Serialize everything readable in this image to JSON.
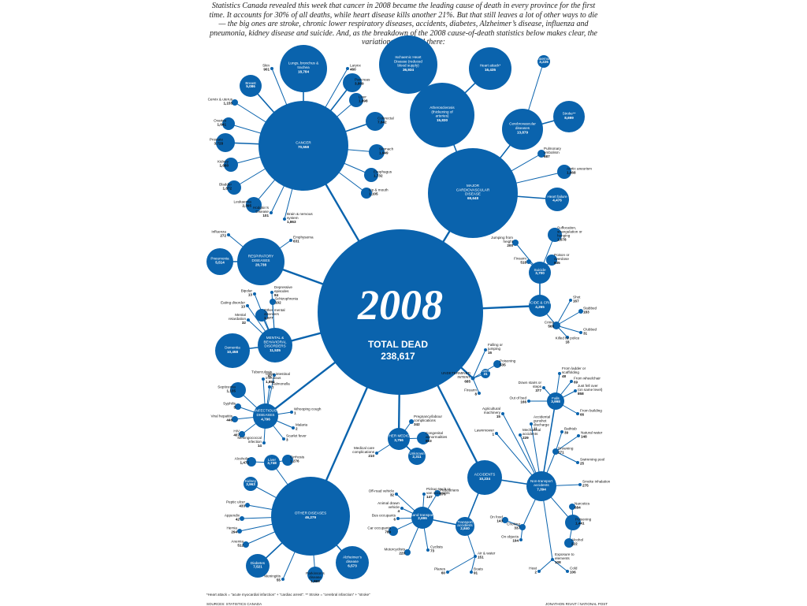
{
  "intro": "Statistics Canada revealed this week that cancer in 2008 became the leading cause of death in every province for the first time. It accounts for 30% of all deaths, while heart disease kills another 21%. But that still leaves a lot of other ways to die — the big ones are stroke, chronic lower respiratory diseases, accidents, diabetes, Alzheimer’s disease, influenza and pneumonia, kidney disease and suicide. And, as the breakdown of the 2008 cause-of-death statistics below makes clear, the variations don’t end there:",
  "center": {
    "year": "2008",
    "label": "TOTAL DEAD",
    "value": "238,617"
  },
  "colors": {
    "node": "#0a63ad",
    "text": "#111111",
    "background": "#ffffff"
  },
  "groups": [
    {
      "id": "cancer",
      "name": "CANCER",
      "value": "70,558",
      "children": [
        {
          "name": "Skin",
          "value": "901"
        },
        {
          "name": "Lungs, bronchus & trachea",
          "value": "18,784"
        },
        {
          "name": "Larynx",
          "value": "460"
        },
        {
          "name": "Pancreas",
          "value": "3,869"
        },
        {
          "name": "Liver",
          "value": "1,898"
        },
        {
          "name": "Colorectal",
          "value": "7,842"
        },
        {
          "name": "Stomach",
          "value": "1,949"
        },
        {
          "name": "Esophagus",
          "value": "1,732"
        },
        {
          "name": "Lip & mouth",
          "value": "1,105"
        },
        {
          "name": "Brain & nervous system",
          "value": "1,863"
        },
        {
          "name": "Hodgkin’s Disease",
          "value": "101"
        },
        {
          "name": "Leukaemia",
          "value": "2,395"
        },
        {
          "name": "Bladder",
          "value": "1,872"
        },
        {
          "name": "Kidney",
          "value": "1,680"
        },
        {
          "name": "Prostate",
          "value": "3,728"
        },
        {
          "name": "Ovaries",
          "value": "1,641"
        },
        {
          "name": "Cervix & uterus",
          "value": "1,155"
        },
        {
          "name": "Breast",
          "value": "5,086"
        }
      ]
    },
    {
      "id": "cardio",
      "name": "MAJOR CARDIOVASCULAR DISEASE",
      "value": "69,648",
      "children": [
        {
          "name": "Ischaemic Heart Disease (reduced blood supply)",
          "value": "36,934"
        },
        {
          "name": "Atherosclerosis (thickening of arteries)",
          "value": "15,830"
        },
        {
          "name": "Heart attack*",
          "value": "16,435"
        },
        {
          "name": "Cerebrovascular diseases",
          "value": "13,879"
        },
        {
          "name": "Brain haemorrhage",
          "value": "3,226"
        },
        {
          "name": "Stroke**",
          "value": "8,699"
        },
        {
          "name": "Pulmonary embolism",
          "value": "687"
        },
        {
          "name": "Aortic aneurism",
          "value": "1,668"
        },
        {
          "name": "Heart failure",
          "value": "4,476"
        }
      ]
    },
    {
      "id": "respiratory",
      "name": "RESPIRATORY DISEASES",
      "value": "20,738",
      "children": [
        {
          "name": "Influenza",
          "value": "272"
        },
        {
          "name": "Emphysema",
          "value": "631"
        },
        {
          "name": "Pneumonia",
          "value": "5,514"
        }
      ]
    },
    {
      "id": "mental",
      "name": "MENTAL & BEHAVIORAL DISORDERS",
      "value": "11,535",
      "children": [
        {
          "name": "Bipolar",
          "value": "13"
        },
        {
          "name": "Depressive episodes",
          "value": "84"
        },
        {
          "name": "Eating disorder",
          "value": "13"
        },
        {
          "name": "Schizophrenia",
          "value": "102"
        },
        {
          "name": "Other mental disorders",
          "value": "1,077"
        },
        {
          "name": "Mental retardation",
          "value": "32"
        },
        {
          "name": "Dementia",
          "value": "10,458"
        }
      ]
    },
    {
      "id": "infectious",
      "name": "INFECTIOUS DISEASES",
      "value": "4,796",
      "children": [
        {
          "name": "Tuberculosis",
          "value": "92"
        },
        {
          "name": "Other intestinal infectious",
          "value": "1,894"
        },
        {
          "name": "Septicemia",
          "value": "1,135"
        },
        {
          "name": "Salmonella",
          "value": "7"
        },
        {
          "name": "Syphilis",
          "value": "5"
        },
        {
          "name": "Whooping cough",
          "value": "1"
        },
        {
          "name": "Viral hepatitis",
          "value": "446"
        },
        {
          "name": "Malaria",
          "value": "2"
        },
        {
          "name": "HIV",
          "value": "407"
        },
        {
          "name": "Scarlet fever",
          "value": "3"
        },
        {
          "name": "Meningococcal infection",
          "value": "14"
        }
      ]
    },
    {
      "id": "other",
      "name": "OTHER DISEASES",
      "value": "46,279",
      "children": [
        {
          "name": "Liver",
          "value": "3,748"
        },
        {
          "name": "Alcoholic",
          "value": "1,472"
        },
        {
          "name": "Cirrhosis",
          "value": "1,276"
        },
        {
          "name": "Kidney",
          "value": "3,963"
        },
        {
          "name": "Peptic ulcer",
          "value": "433"
        },
        {
          "name": "Appendix",
          "value": "42"
        },
        {
          "name": "Hernia",
          "value": "294"
        },
        {
          "name": "Anemia",
          "value": "512"
        },
        {
          "name": "Diabetes",
          "value": "7,521"
        },
        {
          "name": "Meningitis",
          "value": "55"
        },
        {
          "name": "Parkinson’s disease",
          "value": "1,869"
        },
        {
          "name": "Alzheimer’s disease",
          "value": "6,573"
        }
      ]
    },
    {
      "id": "medical",
      "name": "OTHER MEDICAL",
      "value": "3,756",
      "children": [
        {
          "name": "Pregnancy/labour complications",
          "value": "342"
        },
        {
          "name": "Congenital abnormalities",
          "value": "893"
        },
        {
          "name": "Unknown",
          "value": "2,311"
        },
        {
          "name": "Medical care complications",
          "value": "210"
        }
      ]
    },
    {
      "id": "suicide",
      "name": "SUICIDE & CRIME",
      "value": "4,265",
      "children": [
        {
          "name": "Suicide",
          "value": "3,700"
        },
        {
          "name": "Jumping from height",
          "value": "200"
        },
        {
          "name": "Suffocation, strangulation or hanging",
          "value": "1,678"
        },
        {
          "name": "Firearm",
          "value": "518"
        },
        {
          "name": "Poison or overdose",
          "value": "935"
        },
        {
          "name": "Crime",
          "value": "565"
        },
        {
          "name": "Shot",
          "value": "167"
        },
        {
          "name": "Stabbed",
          "value": "183"
        },
        {
          "name": "Clubbed",
          "value": "31"
        },
        {
          "name": "Killed by police",
          "value": "16"
        }
      ]
    },
    {
      "id": "undetermined",
      "name": "UNDETERMINED INTENT",
      "value": "685",
      "children": [
        {
          "name": "Falling or jumping",
          "value": "16"
        },
        {
          "name": "Poisoning",
          "value": "535"
        },
        {
          "name": "Drowning",
          "value": "31"
        },
        {
          "name": "Firearm",
          "value": "8"
        }
      ]
    },
    {
      "id": "accidents",
      "name": "ACCIDENTS",
      "value": "10,234",
      "children": [
        {
          "name": "Falls",
          "value": "3,998"
        },
        {
          "name": "From ladder or scaffolding",
          "value": "48"
        },
        {
          "name": "From wheelchair",
          "value": "69"
        },
        {
          "name": "Down stairs or steps",
          "value": "377"
        },
        {
          "name": "Just fell over (on same level)",
          "value": "858"
        },
        {
          "name": "Out of bed",
          "value": "166"
        },
        {
          "name": "From building",
          "value": "66"
        },
        {
          "name": "Agricultural machinery",
          "value": "15"
        },
        {
          "name": "Accidental gunshot discharge",
          "value": "11"
        },
        {
          "name": "Lawnmower",
          "value": "1"
        },
        {
          "name": "Mechanical accidents",
          "value": "229"
        },
        {
          "name": "Bathtub",
          "value": "39"
        },
        {
          "name": "Natural water",
          "value": "148"
        },
        {
          "name": "Drowning",
          "value": "271"
        },
        {
          "name": "Swimming pool",
          "value": "25"
        },
        {
          "name": "Non-transport accidents",
          "value": "7,394"
        },
        {
          "name": "Smoke inhalation",
          "value": "275"
        },
        {
          "name": "Narcotics",
          "value": "684"
        },
        {
          "name": "On food",
          "value": "143"
        },
        {
          "name": "Poisoning",
          "value": "1,441"
        },
        {
          "name": "Choking",
          "value": "337"
        },
        {
          "name": "On objects",
          "value": "194"
        },
        {
          "name": "Alcohol",
          "value": "222"
        },
        {
          "name": "Exposure to elements",
          "value": "108"
        },
        {
          "name": "Heat",
          "value": "2"
        },
        {
          "name": "Cold",
          "value": "106"
        },
        {
          "name": "Transport accidents",
          "value": "2,840"
        },
        {
          "name": "Land transport",
          "value": "2,696"
        },
        {
          "name": "Pickup truck or van occupants",
          "value": "147"
        },
        {
          "name": "Off-road vehicle",
          "value": "32"
        },
        {
          "name": "Pedestrians",
          "value": "376"
        },
        {
          "name": "Animal drawn vehicle",
          "value": "4"
        },
        {
          "name": "Bus occupants",
          "value": "6"
        },
        {
          "name": "Car occupants",
          "value": "789"
        },
        {
          "name": "Motorcyclists",
          "value": "220"
        },
        {
          "name": "Cyclists",
          "value": "73"
        },
        {
          "name": "Air & water",
          "value": "151"
        },
        {
          "name": "Planes",
          "value": "60"
        },
        {
          "name": "Boats",
          "value": "91"
        }
      ]
    }
  ],
  "footnote": "*Heart attack = “acute myocardial infarction” + “cardiac arrest”. ** Stroke = “cerebral infarction” + “stroke”",
  "sources": "SOURCES: STATISTICS CANADA",
  "credit": "JONATHON RIVAIT / NATIONAL POST"
}
